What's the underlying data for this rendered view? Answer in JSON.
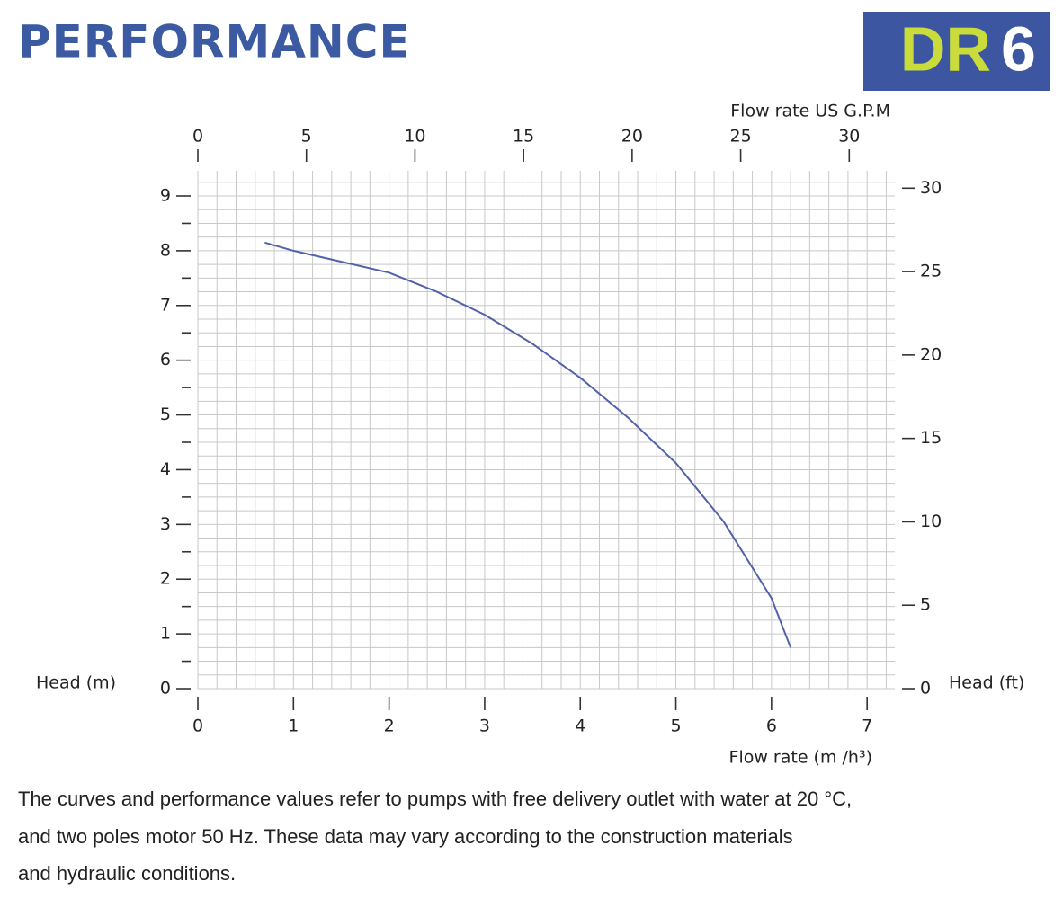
{
  "header": {
    "title": "PERFORMANCE",
    "badge_model": "DR",
    "badge_number": "6"
  },
  "chart_data": {
    "type": "line",
    "ylabel": "Head (m)",
    "y2label": "Head (ft)",
    "xlabel": "Flow rate  (m /h³)",
    "x2label": "Flow rate US  G.P.M",
    "xlim": [
      0,
      7.29
    ],
    "xticks": [
      0,
      1,
      2,
      3,
      4,
      5,
      6,
      7
    ],
    "x2lim": [
      0,
      32.1
    ],
    "x2ticks": [
      0,
      5,
      10,
      15,
      20,
      25,
      30
    ],
    "ylim": [
      0,
      9.46
    ],
    "yticks": [
      0,
      1,
      2,
      3,
      4,
      5,
      6,
      7,
      8,
      9
    ],
    "yticks_minor": [
      0.5,
      1.5,
      2.5,
      3.5,
      4.5,
      5.5,
      6.5,
      7.5,
      8.5
    ],
    "y2lim": [
      0,
      31.04
    ],
    "y2ticks": [
      0,
      5,
      10,
      15,
      20,
      25,
      30
    ],
    "grid": {
      "x_step": 0.2,
      "y_step": 0.25
    },
    "x": [
      0.7,
      1.0,
      1.5,
      2.0,
      2.5,
      3.0,
      3.5,
      4.0,
      4.5,
      5.0,
      5.5,
      6.0,
      6.2
    ],
    "series": [
      {
        "color": "#5262aa",
        "values": [
          8.15,
          8.0,
          7.8,
          7.6,
          7.25,
          6.83,
          6.3,
          5.68,
          4.95,
          4.12,
          3.05,
          1.65,
          0.75
        ]
      }
    ]
  },
  "footnote": [
    "The curves and performance values refer to pumps with free delivery outlet with water at 20 °C,",
    "and two poles motor 50 Hz. These data may vary according to the construction materials",
    "and hydraulic conditions."
  ]
}
